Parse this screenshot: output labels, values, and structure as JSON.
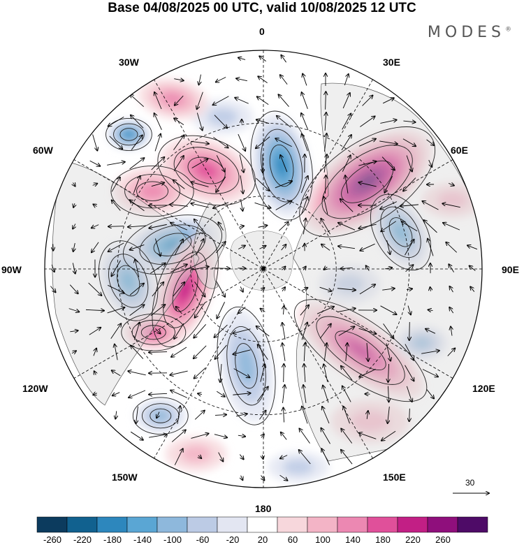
{
  "title": "Base 04/08/2025 00 UTC, valid 10/08/2025 12 UTC",
  "brand": "MODES",
  "brand_mark": "®",
  "longitude_labels": {
    "n": "0",
    "e30": "30E",
    "e60": "60E",
    "e90": "90E",
    "e120": "120E",
    "e150": "150E",
    "s": "180",
    "w150": "150W",
    "w120": "120W",
    "w90": "90W",
    "w60": "60W",
    "w30": "30W"
  },
  "vector_scale": {
    "label": "30"
  },
  "colorbar": {
    "labels": [
      "-260",
      "-220",
      "-180",
      "-140",
      "-100",
      "-60",
      "-20",
      "20",
      "60",
      "100",
      "140",
      "180",
      "220",
      "260"
    ],
    "colors": [
      "#0c3b5e",
      "#11618f",
      "#2d87bd",
      "#5aa6d4",
      "#8eb8dc",
      "#bccbe5",
      "#e3e6f2",
      "#ffffff",
      "#f7d7dc",
      "#f3b4c6",
      "#ec88b2",
      "#e0509a",
      "#c21f85",
      "#8f0f7c",
      "#4e0b67"
    ]
  },
  "anomalies": [
    {
      "lon": 50,
      "r": 0.62,
      "v": 270,
      "sx": 0.34,
      "sy": 0.17,
      "rot": -35
    },
    {
      "lon": 10,
      "r": 0.48,
      "v": -200,
      "sx": 0.24,
      "sy": 0.13,
      "rot": 80
    },
    {
      "lon": -30,
      "r": 0.52,
      "v": 150,
      "sx": 0.22,
      "sy": 0.14,
      "rot": 20
    },
    {
      "lon": -55,
      "r": 0.62,
      "v": 120,
      "sx": 0.18,
      "sy": 0.11,
      "rot": 0
    },
    {
      "lon": -15,
      "r": 0.72,
      "v": -80,
      "sx": 0.14,
      "sy": 0.08,
      "rot": 0
    },
    {
      "lon": -28,
      "r": 0.88,
      "v": 90,
      "sx": 0.16,
      "sy": 0.09,
      "rot": 10
    },
    {
      "lon": -45,
      "r": 0.87,
      "v": -170,
      "sx": 0.1,
      "sy": 0.07,
      "rot": 0
    },
    {
      "lon": -75,
      "r": 0.43,
      "v": -200,
      "sx": 0.22,
      "sy": 0.12,
      "rot": -15
    },
    {
      "lon": -95,
      "r": 0.62,
      "v": -160,
      "sx": 0.18,
      "sy": 0.12,
      "rot": 70
    },
    {
      "lon": -105,
      "r": 0.37,
      "v": 180,
      "sx": 0.26,
      "sy": 0.12,
      "rot": -70
    },
    {
      "lon": -120,
      "r": 0.58,
      "v": 150,
      "sx": 0.14,
      "sy": 0.08,
      "rot": 0
    },
    {
      "lon": -145,
      "r": 0.82,
      "v": -110,
      "sx": 0.12,
      "sy": 0.08,
      "rot": 0
    },
    {
      "lon": -170,
      "r": 0.45,
      "v": -120,
      "sx": 0.26,
      "sy": 0.12,
      "rot": 80
    },
    {
      "lon": 130,
      "r": 0.58,
      "v": 190,
      "sx": 0.34,
      "sy": 0.13,
      "rot": 35
    },
    {
      "lon": 75,
      "r": 0.65,
      "v": -140,
      "sx": 0.18,
      "sy": 0.11,
      "rot": 60
    },
    {
      "lon": 100,
      "r": 0.4,
      "v": -70,
      "sx": 0.14,
      "sy": 0.09,
      "rot": 0
    },
    {
      "lon": 115,
      "r": 0.8,
      "v": -90,
      "sx": 0.12,
      "sy": 0.08,
      "rot": 0
    },
    {
      "lon": 70,
      "r": 0.92,
      "v": 60,
      "sx": 0.14,
      "sy": 0.08,
      "rot": 0
    },
    {
      "lon": 145,
      "r": 0.85,
      "v": 70,
      "sx": 0.18,
      "sy": 0.1,
      "rot": 0
    },
    {
      "lon": 170,
      "r": 0.92,
      "v": -60,
      "sx": 0.14,
      "sy": 0.07,
      "rot": 0
    },
    {
      "lon": -160,
      "r": 0.9,
      "v": 70,
      "sx": 0.14,
      "sy": 0.08,
      "rot": 0
    }
  ]
}
